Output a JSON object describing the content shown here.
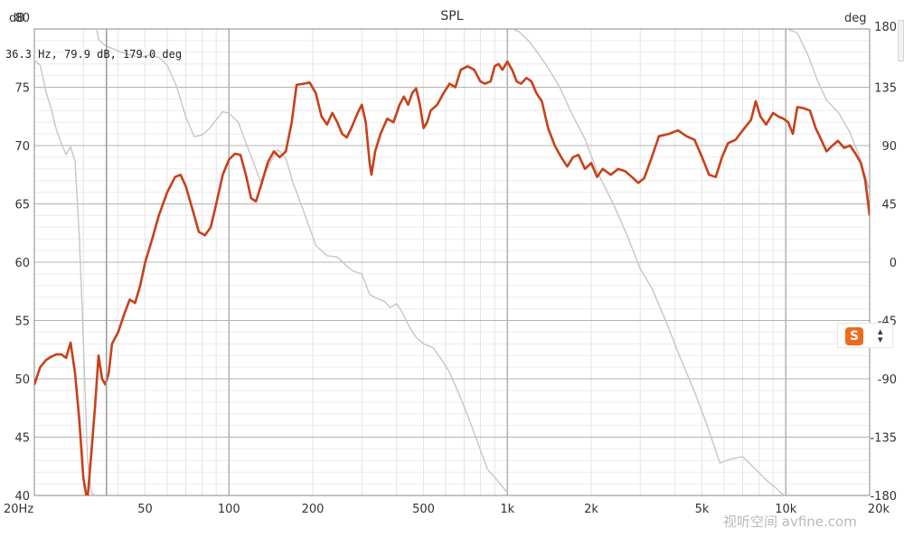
{
  "chart_data": {
    "type": "line",
    "title": "SPL",
    "left_unit": "dB",
    "right_unit": "deg",
    "x_scale": "log",
    "xlim": [
      20,
      20000
    ],
    "ylim": [
      40,
      80
    ],
    "y2lim": [
      -180,
      180
    ],
    "x_ticks": [
      {
        "value": 20,
        "label": "20Hz"
      },
      {
        "value": 50,
        "label": "50"
      },
      {
        "value": 100,
        "label": "100"
      },
      {
        "value": 200,
        "label": "200"
      },
      {
        "value": 500,
        "label": "500"
      },
      {
        "value": 1000,
        "label": "1k"
      },
      {
        "value": 2000,
        "label": "2k"
      },
      {
        "value": 5000,
        "label": "5k"
      },
      {
        "value": 10000,
        "label": "10k"
      },
      {
        "value": 20000,
        "label": "20k"
      }
    ],
    "y_ticks": [
      40,
      45,
      50,
      55,
      60,
      65,
      70,
      75,
      80
    ],
    "y2_ticks": [
      -180,
      -135,
      -90,
      -45,
      0,
      45,
      90,
      135,
      180
    ],
    "grid": true,
    "cursor_readout": "36.3 Hz, 79.9 dB, 179.0 deg",
    "cursor_x": 36.3,
    "series": [
      {
        "axis": "left",
        "color": "#c8401a",
        "points": [
          [
            20,
            49.5
          ],
          [
            21,
            51
          ],
          [
            22,
            51.6
          ],
          [
            23,
            51.9
          ],
          [
            24,
            52.1
          ],
          [
            25,
            52.1
          ],
          [
            26,
            51.8
          ],
          [
            27,
            53.1
          ],
          [
            28,
            50.5
          ],
          [
            29,
            46.5
          ],
          [
            30,
            41.5
          ],
          [
            31,
            39.5
          ],
          [
            32,
            43.5
          ],
          [
            33,
            47.5
          ],
          [
            34,
            52
          ],
          [
            35,
            50
          ],
          [
            36,
            49.5
          ],
          [
            37,
            50.5
          ],
          [
            38,
            53
          ],
          [
            40,
            54
          ],
          [
            42,
            55.5
          ],
          [
            44,
            56.8
          ],
          [
            46,
            56.5
          ],
          [
            48,
            58
          ],
          [
            50,
            60
          ],
          [
            53,
            62
          ],
          [
            56,
            64
          ],
          [
            60,
            66
          ],
          [
            64,
            67.3
          ],
          [
            67,
            67.5
          ],
          [
            70,
            66.5
          ],
          [
            74,
            64.5
          ],
          [
            78,
            62.6
          ],
          [
            82,
            62.3
          ],
          [
            86,
            63
          ],
          [
            90,
            65
          ],
          [
            95,
            67.5
          ],
          [
            100,
            68.8
          ],
          [
            105,
            69.3
          ],
          [
            110,
            69.2
          ],
          [
            115,
            67.5
          ],
          [
            120,
            65.5
          ],
          [
            125,
            65.2
          ],
          [
            130,
            66.5
          ],
          [
            138,
            68.6
          ],
          [
            145,
            69.5
          ],
          [
            152,
            69
          ],
          [
            160,
            69.5
          ],
          [
            168,
            72
          ],
          [
            175,
            75.2
          ],
          [
            185,
            75.3
          ],
          [
            195,
            75.4
          ],
          [
            205,
            74.5
          ],
          [
            215,
            72.5
          ],
          [
            225,
            71.8
          ],
          [
            235,
            72.8
          ],
          [
            245,
            72
          ],
          [
            255,
            71
          ],
          [
            265,
            70.7
          ],
          [
            275,
            71.5
          ],
          [
            290,
            72.8
          ],
          [
            300,
            73.5
          ],
          [
            310,
            72
          ],
          [
            320,
            68.5
          ],
          [
            325,
            67.5
          ],
          [
            335,
            69.5
          ],
          [
            350,
            71
          ],
          [
            370,
            72.3
          ],
          [
            390,
            72
          ],
          [
            410,
            73.5
          ],
          [
            425,
            74.2
          ],
          [
            440,
            73.5
          ],
          [
            455,
            74.5
          ],
          [
            470,
            74.9
          ],
          [
            485,
            73.5
          ],
          [
            500,
            71.5
          ],
          [
            515,
            72
          ],
          [
            530,
            73
          ],
          [
            560,
            73.5
          ],
          [
            590,
            74.5
          ],
          [
            620,
            75.3
          ],
          [
            650,
            75
          ],
          [
            680,
            76.5
          ],
          [
            720,
            76.8
          ],
          [
            760,
            76.5
          ],
          [
            800,
            75.5
          ],
          [
            830,
            75.3
          ],
          [
            870,
            75.5
          ],
          [
            900,
            76.8
          ],
          [
            930,
            77
          ],
          [
            960,
            76.5
          ],
          [
            1000,
            77.2
          ],
          [
            1040,
            76.5
          ],
          [
            1080,
            75.5
          ],
          [
            1120,
            75.3
          ],
          [
            1170,
            75.8
          ],
          [
            1220,
            75.5
          ],
          [
            1270,
            74.5
          ],
          [
            1330,
            73.8
          ],
          [
            1400,
            71.5
          ],
          [
            1480,
            70
          ],
          [
            1560,
            69
          ],
          [
            1640,
            68.2
          ],
          [
            1720,
            69
          ],
          [
            1800,
            69.2
          ],
          [
            1900,
            68
          ],
          [
            2000,
            68.5
          ],
          [
            2100,
            67.3
          ],
          [
            2200,
            68
          ],
          [
            2350,
            67.5
          ],
          [
            2500,
            68
          ],
          [
            2650,
            67.8
          ],
          [
            2800,
            67.3
          ],
          [
            2950,
            66.8
          ],
          [
            3100,
            67.2
          ],
          [
            3300,
            69
          ],
          [
            3500,
            70.8
          ],
          [
            3800,
            71
          ],
          [
            4100,
            71.3
          ],
          [
            4400,
            70.8
          ],
          [
            4700,
            70.5
          ],
          [
            5000,
            69
          ],
          [
            5300,
            67.5
          ],
          [
            5600,
            67.3
          ],
          [
            5900,
            69
          ],
          [
            6200,
            70.2
          ],
          [
            6600,
            70.5
          ],
          [
            7000,
            71.3
          ],
          [
            7500,
            72.2
          ],
          [
            7800,
            73.8
          ],
          [
            8100,
            72.5
          ],
          [
            8500,
            71.8
          ],
          [
            9000,
            72.8
          ],
          [
            9400,
            72.5
          ],
          [
            9800,
            72.3
          ],
          [
            10200,
            72
          ],
          [
            10600,
            71
          ],
          [
            11000,
            73.3
          ],
          [
            11600,
            73.2
          ],
          [
            12200,
            73
          ],
          [
            12800,
            71.5
          ],
          [
            13400,
            70.5
          ],
          [
            14000,
            69.5
          ],
          [
            14700,
            70
          ],
          [
            15400,
            70.4
          ],
          [
            16200,
            69.8
          ],
          [
            17000,
            70
          ],
          [
            17800,
            69.3
          ],
          [
            18600,
            68.5
          ],
          [
            19300,
            67
          ],
          [
            20000,
            64
          ]
        ]
      },
      {
        "axis": "right",
        "color": "#c6c6c6",
        "points": [
          [
            20,
            156
          ],
          [
            21,
            152
          ],
          [
            22,
            132
          ],
          [
            23,
            118
          ],
          [
            24,
            102
          ],
          [
            25,
            92
          ],
          [
            26,
            83
          ],
          [
            27,
            89
          ],
          [
            28,
            78
          ],
          [
            29,
            20
          ],
          [
            30,
            -60
          ],
          [
            31,
            -150
          ],
          [
            32,
            -178
          ],
          [
            33,
            -180
          ],
          [
            33.4,
            -180
          ],
          [
            33.5,
            180
          ],
          [
            34,
            172
          ],
          [
            36,
            167
          ],
          [
            38,
            165
          ],
          [
            40,
            163
          ],
          [
            44,
            160
          ],
          [
            48,
            158
          ],
          [
            52,
            160
          ],
          [
            56,
            158
          ],
          [
            60,
            152
          ],
          [
            65,
            135
          ],
          [
            70,
            112
          ],
          [
            75,
            97
          ],
          [
            80,
            98
          ],
          [
            85,
            103
          ],
          [
            90,
            110
          ],
          [
            95,
            116
          ],
          [
            100,
            115
          ],
          [
            108,
            108
          ],
          [
            115,
            92
          ],
          [
            122,
            78
          ],
          [
            130,
            62
          ],
          [
            140,
            76
          ],
          [
            150,
            87
          ],
          [
            160,
            80
          ],
          [
            170,
            61
          ],
          [
            185,
            40
          ],
          [
            205,
            13
          ],
          [
            225,
            5
          ],
          [
            245,
            4
          ],
          [
            265,
            -3
          ],
          [
            280,
            -7
          ],
          [
            300,
            -9
          ],
          [
            320,
            -25
          ],
          [
            340,
            -28
          ],
          [
            360,
            -30
          ],
          [
            380,
            -35
          ],
          [
            400,
            -32
          ],
          [
            420,
            -39
          ],
          [
            445,
            -50
          ],
          [
            470,
            -58
          ],
          [
            500,
            -63
          ],
          [
            540,
            -66
          ],
          [
            580,
            -75
          ],
          [
            620,
            -85
          ],
          [
            680,
            -105
          ],
          [
            740,
            -125
          ],
          [
            800,
            -145
          ],
          [
            850,
            -160
          ],
          [
            900,
            -166
          ],
          [
            950,
            -172
          ],
          [
            1000,
            -178
          ],
          [
            1010,
            -180
          ],
          [
            1020,
            -180
          ],
          [
            1040,
            180
          ],
          [
            1100,
            178
          ],
          [
            1200,
            170
          ],
          [
            1300,
            160
          ],
          [
            1400,
            150
          ],
          [
            1550,
            134
          ],
          [
            1700,
            115
          ],
          [
            1900,
            95
          ],
          [
            2100,
            70
          ],
          [
            2400,
            45
          ],
          [
            2700,
            20
          ],
          [
            3000,
            -5
          ],
          [
            3300,
            -20
          ],
          [
            3700,
            -45
          ],
          [
            4200,
            -75
          ],
          [
            4700,
            -100
          ],
          [
            5200,
            -125
          ],
          [
            5800,
            -155
          ],
          [
            6300,
            -152
          ],
          [
            7000,
            -150
          ],
          [
            7800,
            -160
          ],
          [
            8500,
            -168
          ],
          [
            9200,
            -174
          ],
          [
            9600,
            -178
          ],
          [
            9900,
            -180
          ],
          [
            10000,
            -180
          ],
          [
            10100,
            180
          ],
          [
            11000,
            177
          ],
          [
            12000,
            160
          ],
          [
            13000,
            140
          ],
          [
            14000,
            125
          ],
          [
            15500,
            115
          ],
          [
            17000,
            100
          ],
          [
            18500,
            80
          ],
          [
            20000,
            55
          ]
        ]
      }
    ]
  },
  "watermark": "视听空间 avfine.com",
  "ime": {
    "logo_letter": "S",
    "arrows": "▴▾"
  }
}
